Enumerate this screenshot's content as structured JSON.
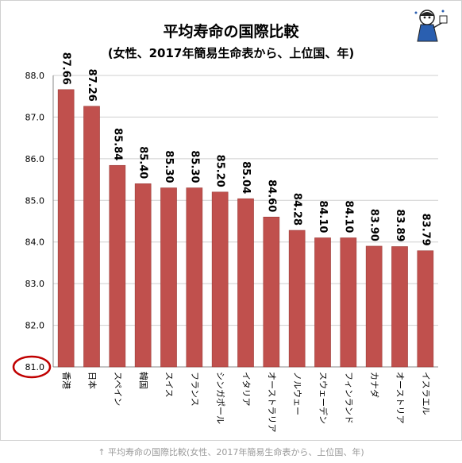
{
  "chart_data": {
    "type": "bar",
    "title": "平均寿命の国際比較",
    "subtitle": "(女性、2017年簡易生命表から、上位国、年)",
    "xlabel": "",
    "ylabel": "",
    "ylim": [
      81,
      88
    ],
    "yticks": [
      "88.0",
      "87.0",
      "86.0",
      "85.0",
      "84.0",
      "83.0",
      "82.0",
      "81.0"
    ],
    "categories": [
      "香港",
      "日本",
      "スペイン",
      "韓国",
      "スイス",
      "フランス",
      "シンガポール",
      "イタリア",
      "オーストラリア",
      "ノルウェー",
      "スウェーデン",
      "フィンランド",
      "カナダ",
      "オーストリア",
      "イスラエル"
    ],
    "values": [
      87.66,
      87.26,
      85.84,
      85.4,
      85.3,
      85.3,
      85.2,
      85.04,
      84.6,
      84.28,
      84.1,
      84.1,
      83.9,
      83.89,
      83.79
    ],
    "value_labels": [
      "87.66",
      "87.26",
      "85.84",
      "85.40",
      "85.30",
      "85.30",
      "85.20",
      "85.04",
      "84.60",
      "84.28",
      "84.10",
      "84.10",
      "83.90",
      "83.89",
      "83.79"
    ],
    "grid": true,
    "legend": "none",
    "bar_color": "#c0504d",
    "highlight_color": "#c00000"
  },
  "caption": "↑ 平均寿命の国際比較(女性、2017年簡易生命表から、上位国、年)"
}
